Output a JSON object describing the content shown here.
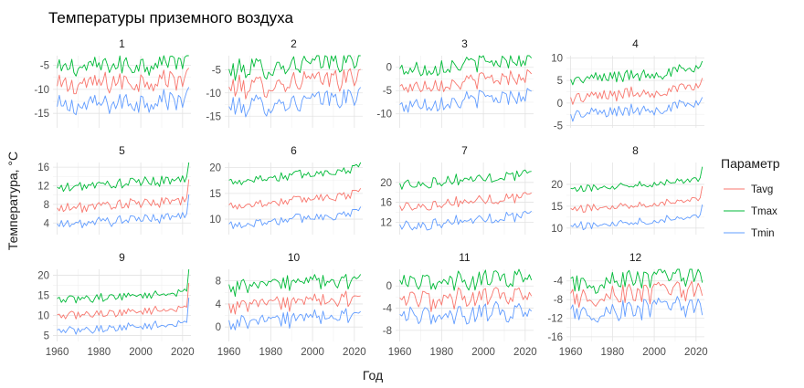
{
  "chart_data": {
    "type": "line",
    "title": "Температуры приземного воздуха",
    "xlabel": "Год",
    "ylabel": "Температура, °C",
    "legend": {
      "title": "Параметр",
      "placement": "right",
      "entries": [
        {
          "name": "Tavg",
          "color": "#F8766D"
        },
        {
          "name": "Tmax",
          "color": "#00BA38"
        },
        {
          "name": "Tmin",
          "color": "#619CFF"
        }
      ]
    },
    "grid": true,
    "x_range": [
      1958,
      2024
    ],
    "x_ticks": [
      "1960",
      "1980",
      "2000",
      "2020"
    ],
    "x_tick_values": [
      1960,
      1980,
      2000,
      2020
    ],
    "series_names": [
      "Tavg",
      "Tmax",
      "Tmin"
    ],
    "panels": [
      {
        "label": "1",
        "ylim": [
          -18,
          -3
        ],
        "ticks": [
          -15,
          -10,
          -5
        ],
        "tick_labels": [
          "-15",
          "-10",
          "-5"
        ],
        "base": {
          "Tavg": -9.5,
          "Tmax": -5.8,
          "Tmin": -13.8
        },
        "trend": 2.0,
        "noise": 2.2,
        "end": 1.0
      },
      {
        "label": "2",
        "ylim": [
          -17.5,
          -2
        ],
        "ticks": [
          -15,
          -10,
          -5
        ],
        "tick_labels": [
          "-15",
          "-10",
          "-5"
        ],
        "base": {
          "Tavg": -9.0,
          "Tmax": -5.2,
          "Tmin": -13.2
        },
        "trend": 2.5,
        "noise": 2.3,
        "end": 1.5
      },
      {
        "label": "3",
        "ylim": [
          -13,
          2.5
        ],
        "ticks": [
          -10,
          -5,
          0
        ],
        "tick_labels": [
          "-10",
          "-5",
          "0"
        ],
        "base": {
          "Tavg": -4.3,
          "Tmax": -0.6,
          "Tmin": -8.3
        },
        "trend": 2.5,
        "noise": 1.7,
        "end": 1.0
      },
      {
        "label": "4",
        "ylim": [
          -5.5,
          10.5
        ],
        "ticks": [
          -5,
          0,
          5,
          10
        ],
        "tick_labels": [
          "-5",
          "0",
          "5",
          "10"
        ],
        "base": {
          "Tavg": 1.0,
          "Tmax": 5.0,
          "Tmin": -2.8
        },
        "trend": 2.5,
        "noise": 1.3,
        "end": 3.0
      },
      {
        "label": "5",
        "ylim": [
          1.5,
          17
        ],
        "ticks": [
          4,
          8,
          12,
          16
        ],
        "tick_labels": [
          "4",
          "8",
          "12",
          "16"
        ],
        "base": {
          "Tavg": 7.0,
          "Tmax": 11.5,
          "Tmin": 3.6
        },
        "trend": 2.0,
        "noise": 1.0,
        "end": 4.0
      },
      {
        "label": "6",
        "ylim": [
          7,
          21
        ],
        "ticks": [
          10,
          15,
          20
        ],
        "tick_labels": [
          "10",
          "15",
          "20"
        ],
        "base": {
          "Tavg": 12.5,
          "Tmax": 17.3,
          "Tmin": 8.8
        },
        "trend": 2.5,
        "noise": 0.9,
        "end": 1.0
      },
      {
        "label": "7",
        "ylim": [
          9.5,
          24
        ],
        "ticks": [
          12,
          16,
          20
        ],
        "tick_labels": [
          "12",
          "16",
          "20"
        ],
        "base": {
          "Tavg": 15.0,
          "Tmax": 19.5,
          "Tmin": 11.2
        },
        "trend": 2.3,
        "noise": 1.0,
        "end": 1.0
      },
      {
        "label": "8",
        "ylim": [
          8.5,
          25
        ],
        "ticks": [
          10,
          15,
          20
        ],
        "tick_labels": [
          "10",
          "15",
          "20"
        ],
        "base": {
          "Tavg": 14.2,
          "Tmax": 18.8,
          "Tmin": 10.3
        },
        "trend": 2.5,
        "noise": 0.8,
        "end": 3.5
      },
      {
        "label": "9",
        "ylim": [
          3.5,
          21.5
        ],
        "ticks": [
          5,
          10,
          15,
          20
        ],
        "tick_labels": [
          "5",
          "10",
          "15",
          "20"
        ],
        "base": {
          "Tavg": 9.8,
          "Tmax": 13.8,
          "Tmin": 6.0
        },
        "trend": 2.0,
        "noise": 0.9,
        "end": 6.0
      },
      {
        "label": "10",
        "ylim": [
          -2.5,
          10
        ],
        "ticks": [
          0,
          4,
          8
        ],
        "tick_labels": [
          "0",
          "4",
          "8"
        ],
        "base": {
          "Tavg": 3.5,
          "Tmax": 6.8,
          "Tmin": 0.6
        },
        "trend": 1.5,
        "noise": 1.3,
        "end": 0.5
      },
      {
        "label": "11",
        "ylim": [
          -10,
          3
        ],
        "ticks": [
          -8,
          -4,
          0
        ],
        "tick_labels": [
          "-8",
          "-4",
          "0"
        ],
        "base": {
          "Tavg": -3.0,
          "Tmax": 0.2,
          "Tmin": -6.0
        },
        "trend": 1.5,
        "noise": 1.8,
        "end": 0.5
      },
      {
        "label": "12",
        "ylim": [
          -17,
          -1.5
        ],
        "ticks": [
          -16,
          -12,
          -8,
          -4
        ],
        "tick_labels": [
          "-16",
          "-12",
          "-8",
          "-4"
        ],
        "base": {
          "Tavg": -7.8,
          "Tmax": -4.6,
          "Tmin": -11.2
        },
        "trend": 2.0,
        "noise": 2.2,
        "end": 0.5
      }
    ]
  }
}
